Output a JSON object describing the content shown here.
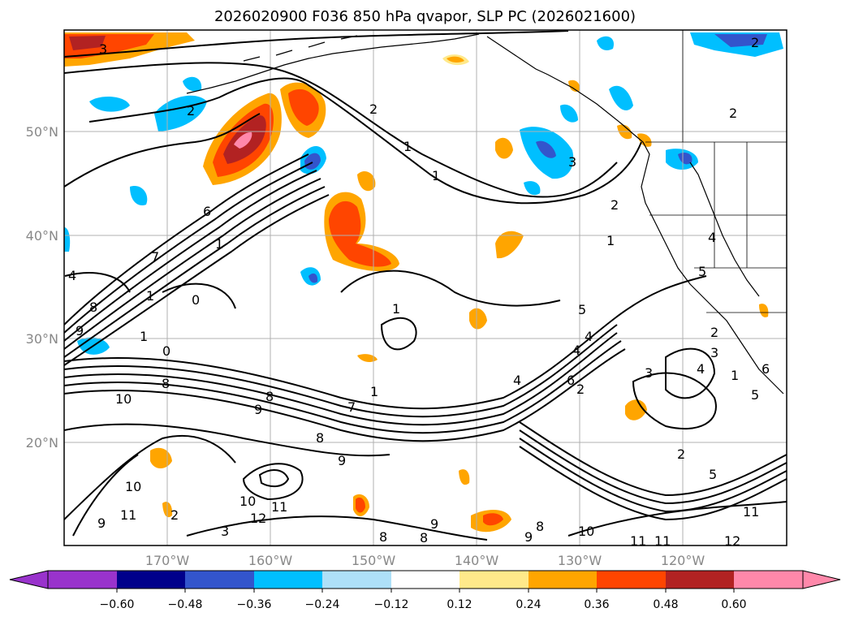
{
  "title": "2026020900 F036 850 hPa qvapor, SLP PC (2026021600)",
  "lat_labels": [
    "50°N",
    "40°N",
    "30°N",
    "20°N"
  ],
  "lon_labels": [
    "170°W",
    "160°W",
    "150°W",
    "140°W",
    "130°W",
    "120°W"
  ],
  "colorbar": {
    "tick_labels": [
      "−0.60",
      "−0.48",
      "−0.36",
      "−0.24",
      "−0.12",
      "0.12",
      "0.24",
      "0.36",
      "0.48",
      "0.60"
    ],
    "colors": [
      "#9933cc",
      "#00008b",
      "#3355cc",
      "#00bfff",
      "#aee0f8",
      "#ffffff",
      "#ffe98a",
      "#ffa500",
      "#ff4500",
      "#b22222",
      "#ff88aa"
    ]
  },
  "contour_labels": [
    "3",
    "2",
    "2",
    "2",
    "1",
    "1",
    "1",
    "6",
    "7",
    "8",
    "9",
    "1",
    "0",
    "1",
    "0",
    "4",
    "8",
    "10",
    "9",
    "8",
    "7",
    "4",
    "1",
    "1",
    "3",
    "4",
    "5",
    "4",
    "6",
    "2",
    "2",
    "1",
    "4",
    "2",
    "2",
    "3",
    "4",
    "5",
    "6",
    "1",
    "3",
    "2",
    "5",
    "8",
    "9",
    "10",
    "11",
    "9",
    "10",
    "12",
    "11",
    "8",
    "9",
    "8",
    "9",
    "8",
    "10",
    "11",
    "11",
    "12",
    "11",
    "5",
    "2",
    "3"
  ]
}
